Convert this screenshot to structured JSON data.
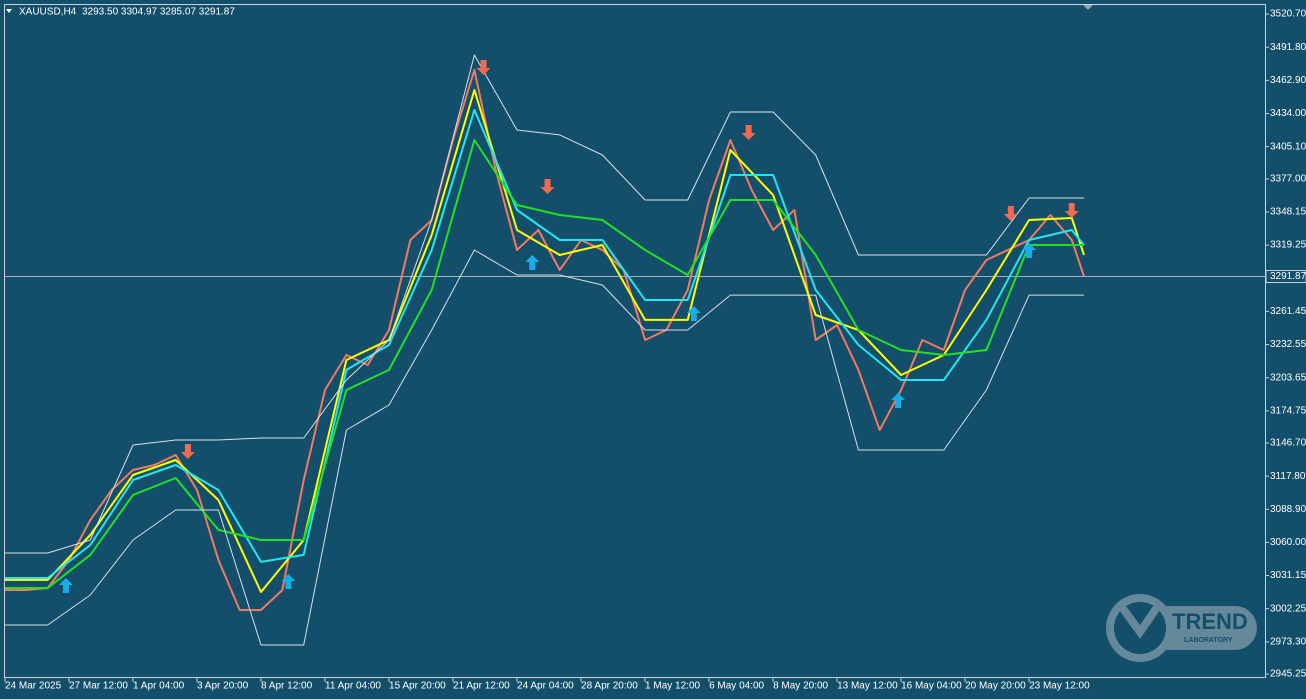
{
  "chart_data": {
    "type": "line",
    "title": "XAUUSD,H4",
    "subtitle": "3293.50 3304.97 3285.07 3291.87",
    "xlim": [
      0,
      413.4
    ],
    "xticks": [
      {
        "value": 0,
        "label": "24 Mar 2025"
      },
      {
        "value": 21,
        "label": "27 Mar 12:00"
      },
      {
        "value": 42,
        "label": "1 Apr 04:00"
      },
      {
        "value": 63,
        "label": "3 Apr 20:00"
      },
      {
        "value": 84,
        "label": "8 Apr 12:00"
      },
      {
        "value": 105,
        "label": "11 Apr 04:00"
      },
      {
        "value": 126,
        "label": "15 Apr 20:00"
      },
      {
        "value": 147,
        "label": "21 Apr 12:00"
      },
      {
        "value": 168,
        "label": "24 Apr 04:00"
      },
      {
        "value": 189,
        "label": "28 Apr 20:00"
      },
      {
        "value": 210,
        "label": "1 May 12:00"
      },
      {
        "value": 231,
        "label": "6 May 04:00"
      },
      {
        "value": 252,
        "label": "8 May 20:00"
      },
      {
        "value": 273,
        "label": "13 May 12:00"
      },
      {
        "value": 294,
        "label": "16 May 04:00"
      },
      {
        "value": 315,
        "label": "20 May 20:00"
      },
      {
        "value": 336,
        "label": "23 May 12:00"
      }
    ],
    "ylim": [
      2941.8,
      3528.6
    ],
    "yticks": [
      {
        "value": 3520.7,
        "label": "3520.70"
      },
      {
        "value": 3491.8,
        "label": "3491.80"
      },
      {
        "value": 3462.9,
        "label": "3462.90"
      },
      {
        "value": 3434.0,
        "label": "3434.00"
      },
      {
        "value": 3405.1,
        "label": "3405.10"
      },
      {
        "value": 3377.0,
        "label": "3377.00"
      },
      {
        "value": 3348.15,
        "label": "3348.15"
      },
      {
        "value": 3319.25,
        "label": "3319.25"
      },
      {
        "value": 3261.45,
        "label": "3261.45"
      },
      {
        "value": 3232.55,
        "label": "3232.55"
      },
      {
        "value": 3203.65,
        "label": "3203.65"
      },
      {
        "value": 3174.75,
        "label": "3174.75"
      },
      {
        "value": 3146.7,
        "label": "3146.70"
      },
      {
        "value": 3117.8,
        "label": "3117.80"
      },
      {
        "value": 3088.9,
        "label": "3088.90"
      },
      {
        "value": 3060.0,
        "label": "3060.00"
      },
      {
        "value": 3031.15,
        "label": "3031.15"
      },
      {
        "value": 3002.25,
        "label": "3002.25"
      },
      {
        "value": 2973.3,
        "label": "2973.30"
      },
      {
        "value": 2945.25,
        "label": "2945.25"
      }
    ],
    "last_price": 3291.87,
    "series": [
      {
        "color": "#f07a62",
        "width": 2,
        "x": [
          0,
          7,
          14,
          21,
          28,
          35,
          42,
          49,
          56,
          63,
          70,
          77,
          84,
          91,
          98,
          105,
          112,
          119,
          126,
          133,
          140,
          147,
          154,
          161,
          168,
          175,
          182,
          189,
          196,
          203,
          210,
          217,
          224,
          231,
          238,
          245,
          252,
          259,
          266,
          273,
          280,
          287,
          294,
          301,
          308,
          315,
          322,
          329,
          336,
          343,
          350,
          354
        ],
        "values": [
          3018.5,
          3018.5,
          3020.3,
          3044.7,
          3079.6,
          3105.7,
          3123.2,
          3127.5,
          3136.2,
          3105.7,
          3044.7,
          3001.1,
          3001.1,
          3018.5,
          3114.4,
          3192.9,
          3223.4,
          3214.7,
          3245.2,
          3323.7,
          3341.1,
          3410.9,
          3471.9,
          3384.7,
          3315.0,
          3332.4,
          3297.5,
          3323.7,
          3315.0,
          3297.5,
          3236.5,
          3245.2,
          3280.1,
          3358.6,
          3410.9,
          3367.3,
          3332.4,
          3349.9,
          3236.5,
          3249.6,
          3210.4,
          3158.0,
          3192.9,
          3236.5,
          3227.8,
          3280.1,
          3306.3,
          3315.0,
          3323.7,
          3345.5,
          3323.7,
          3291.87
        ]
      },
      {
        "color": "#ffff00",
        "width": 2,
        "x": [
          0,
          14,
          28,
          42,
          56,
          70,
          84,
          98,
          112,
          126,
          140,
          154,
          168,
          182,
          196,
          210,
          224,
          238,
          252,
          266,
          280,
          294,
          308,
          322,
          336,
          350,
          354
        ],
        "values": [
          3027.3,
          3027.3,
          3066.5,
          3118.8,
          3131.9,
          3097.0,
          3016.8,
          3062.1,
          3219.1,
          3236.5,
          3328.1,
          3454.5,
          3332.4,
          3310.6,
          3319.3,
          3254.0,
          3254.0,
          3402.2,
          3362.9,
          3258.3,
          3245.2,
          3206.0,
          3223.4,
          3280.1,
          3341.1,
          3342.9,
          3310.6
        ]
      },
      {
        "color": "#22e5f0",
        "width": 2,
        "x": [
          0,
          14,
          28,
          42,
          56,
          70,
          84,
          98,
          112,
          126,
          140,
          154,
          168,
          182,
          196,
          210,
          224,
          238,
          252,
          266,
          280,
          294,
          308,
          322,
          336,
          350,
          354
        ],
        "values": [
          3029.0,
          3029.0,
          3057.8,
          3114.4,
          3127.5,
          3105.7,
          3043.0,
          3049.1,
          3210.4,
          3232.2,
          3315.0,
          3437.1,
          3349.9,
          3323.7,
          3323.7,
          3271.4,
          3271.4,
          3380.4,
          3380.4,
          3280.1,
          3232.2,
          3201.6,
          3201.6,
          3254.0,
          3323.7,
          3332.4,
          3319.3
        ]
      },
      {
        "color": "#22e022",
        "width": 2,
        "x": [
          0,
          14,
          28,
          42,
          56,
          70,
          84,
          98,
          112,
          126,
          140,
          154,
          168,
          182,
          196,
          210,
          224,
          238,
          252,
          266,
          280,
          294,
          308,
          322,
          336,
          350,
          354
        ],
        "values": [
          3020.3,
          3020.3,
          3049.1,
          3101.4,
          3116.2,
          3070.9,
          3062.1,
          3062.1,
          3192.9,
          3210.4,
          3280.1,
          3410.9,
          3354.2,
          3345.5,
          3341.1,
          3315.0,
          3293.2,
          3358.6,
          3358.6,
          3310.6,
          3245.2,
          3227.8,
          3223.4,
          3227.8,
          3319.3,
          3319.3,
          3319.3
        ]
      },
      {
        "color": "#d8e0e6",
        "width": 1,
        "x": [
          0,
          14,
          28,
          42,
          56,
          70,
          84,
          98,
          112,
          126,
          140,
          154,
          168,
          182,
          196,
          210,
          224,
          238,
          252,
          266,
          280,
          294,
          308,
          322,
          336,
          350,
          354
        ],
        "values": [
          3050.8,
          3050.8,
          3062.1,
          3145.0,
          3149.3,
          3149.3,
          3151.1,
          3151.1,
          3201.6,
          3236.5,
          3341.1,
          3485.0,
          3419.6,
          3415.3,
          3397.8,
          3358.6,
          3358.6,
          3435.3,
          3435.3,
          3397.8,
          3310.6,
          3310.6,
          3310.6,
          3310.6,
          3360.3,
          3360.3,
          3360.3
        ]
      },
      {
        "color": "#d8e0e6",
        "width": 1,
        "x": [
          0,
          14,
          28,
          42,
          56,
          70,
          84,
          98,
          112,
          126,
          140,
          154,
          168,
          182,
          196,
          210,
          224,
          238,
          252,
          266,
          280,
          294,
          308,
          322,
          336,
          350,
          354
        ],
        "values": [
          2988.0,
          2988.0,
          3014.2,
          3062.1,
          3088.3,
          3088.3,
          2970.6,
          2970.6,
          3158.0,
          3179.8,
          3245.2,
          3315.0,
          3293.2,
          3293.2,
          3284.5,
          3245.2,
          3245.2,
          3275.7,
          3275.7,
          3275.7,
          3140.6,
          3140.6,
          3140.6,
          3192.9,
          3275.7,
          3275.7,
          3275.7
        ]
      }
    ],
    "markers": [
      {
        "direction": "down",
        "color": "#f26a50",
        "x": [
          60,
          157,
          178,
          244,
          330,
          350
        ],
        "values": [
          3138.9,
          3473.7,
          3369.9,
          3417.0,
          3346.4,
          3349.0
        ]
      },
      {
        "direction": "up",
        "color": "#16aee8",
        "x": [
          20,
          93,
          173,
          226,
          293,
          336
        ],
        "values": [
          3022.9,
          3026.4,
          3304.5,
          3260.0,
          3184.2,
          3315.0
        ]
      }
    ]
  },
  "logo": {
    "title": "TREND",
    "subtitle": "LABORATORY"
  }
}
